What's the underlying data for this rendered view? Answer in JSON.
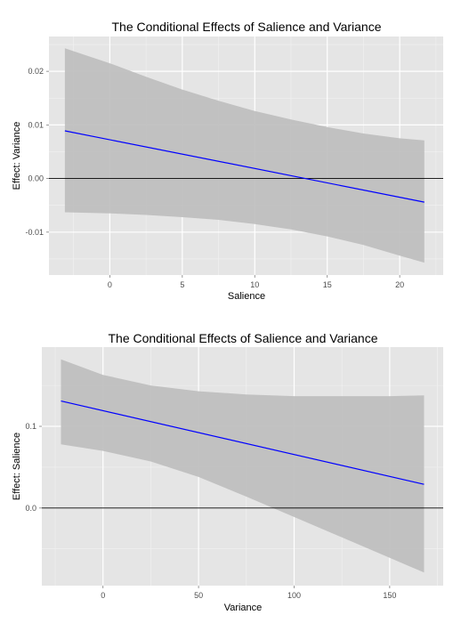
{
  "chart_data": [
    {
      "type": "line",
      "title": "The Conditional Effects of Salience and Variance",
      "xlabel": "Salience",
      "ylabel": "Effect: Variance",
      "xlim": [
        -4.2,
        23.0
      ],
      "ylim": [
        -0.018,
        0.0265
      ],
      "xticks": [
        0,
        5,
        10,
        15,
        20
      ],
      "yticks": [
        -0.01,
        0.0,
        0.01,
        0.02
      ],
      "ytick_labels": [
        "-0.01",
        "0.00",
        "0.01",
        "0.02"
      ],
      "reference_line_y": 0,
      "grid": true,
      "series": [
        {
          "color": "#0000ff",
          "x": [
            -3.1,
            21.7
          ],
          "y": [
            0.0089,
            -0.0044
          ]
        }
      ],
      "ribbon": {
        "color": "#bdbdbd",
        "x": [
          -3.1,
          0,
          2.5,
          5,
          7.5,
          10,
          12.5,
          15,
          17.5,
          20,
          21.7
        ],
        "upper": [
          0.0243,
          0.0215,
          0.019,
          0.0166,
          0.0145,
          0.0126,
          0.011,
          0.0096,
          0.0084,
          0.0075,
          0.0071
        ],
        "lower": [
          -0.0063,
          -0.0065,
          -0.0068,
          -0.0072,
          -0.0077,
          -0.0085,
          -0.0095,
          -0.0108,
          -0.0124,
          -0.0144,
          -0.0157
        ]
      }
    },
    {
      "type": "line",
      "title": "The Conditional Effects of Salience and Variance",
      "xlabel": "Variance",
      "ylabel": "Effect: Salience",
      "xlim": [
        -32,
        178
      ],
      "ylim": [
        -0.095,
        0.197
      ],
      "xticks": [
        0,
        50,
        100,
        150
      ],
      "yticks": [
        0.0,
        0.1
      ],
      "ytick_labels": [
        "0.0",
        "0.1"
      ],
      "reference_line_y": 0,
      "grid": true,
      "series": [
        {
          "color": "#0000ff",
          "x": [
            -22,
            168
          ],
          "y": [
            0.131,
            0.029
          ]
        }
      ],
      "ribbon": {
        "color": "#bdbdbd",
        "x": [
          -22,
          0,
          25,
          50,
          75,
          100,
          125,
          150,
          168
        ],
        "upper": [
          0.182,
          0.163,
          0.15,
          0.143,
          0.139,
          0.137,
          0.137,
          0.137,
          0.138
        ],
        "lower": [
          0.078,
          0.07,
          0.057,
          0.038,
          0.014,
          -0.011,
          -0.036,
          -0.061,
          -0.079
        ]
      }
    }
  ]
}
